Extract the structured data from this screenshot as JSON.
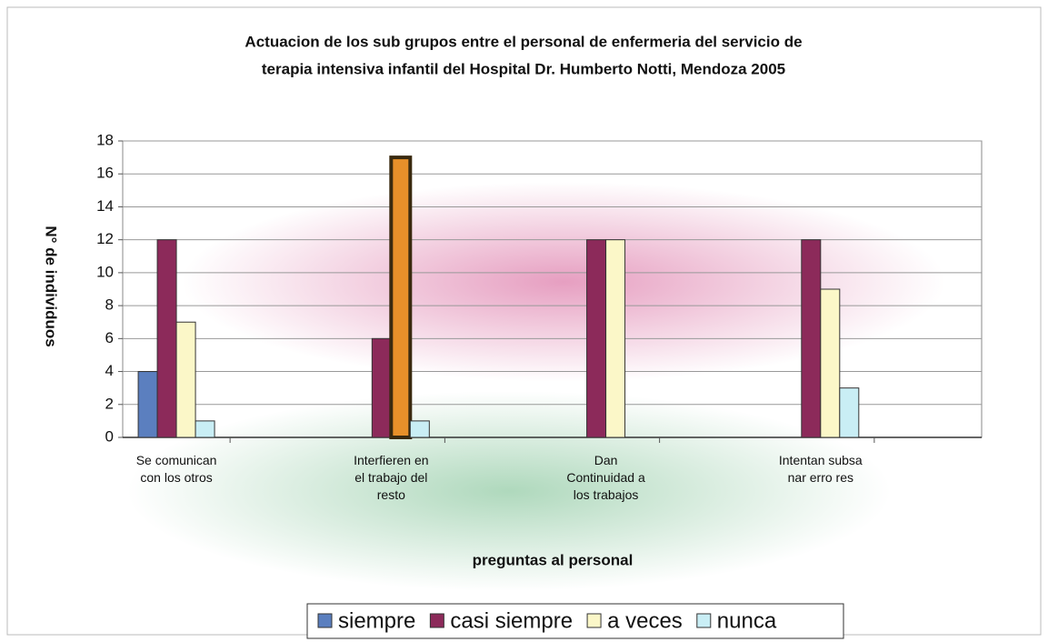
{
  "chart_data": {
    "type": "bar",
    "title": [
      "Actuacion de los sub grupos entre el personal de enfermeria del servicio de",
      "terapia intensiva infantil del Hospital Dr. Humberto Notti, Mendoza 2005"
    ],
    "categories": [
      "Se comunican con los otros",
      "Interfieren en el trabajo del resto",
      "Dan Continuidad a los trabajos",
      "Intentan subsa nar erro res"
    ],
    "series": [
      {
        "name": "siempre",
        "color": "#5b7fbf",
        "values": [
          4,
          0,
          0,
          0
        ]
      },
      {
        "name": "casi siempre",
        "color": "#8c2a5a",
        "values": [
          12,
          6,
          12,
          12
        ]
      },
      {
        "name": "a veces",
        "color": "#fbf7c8",
        "values": [
          7,
          17,
          12,
          9
        ]
      },
      {
        "name": "nunca",
        "color": "#c9eef5",
        "values": [
          1,
          1,
          0,
          3
        ]
      }
    ],
    "highlight": {
      "series": 2,
      "index": 1,
      "color": "#e8902a"
    },
    "ylim": [
      0,
      18
    ],
    "yticks": [
      0,
      2,
      4,
      6,
      8,
      10,
      12,
      14,
      16,
      18
    ],
    "ylabel": "N° de individuos",
    "xlabel": "preguntas al personal",
    "grid": true,
    "legend": "bottom"
  }
}
